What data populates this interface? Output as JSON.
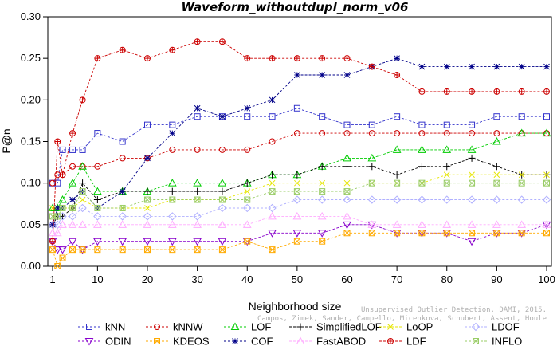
{
  "chart_data": {
    "type": "line",
    "title": "Waveform_withoutdupl_norm_v06",
    "xlabel": "Neighborhood size",
    "ylabel": "P@n",
    "xlim": [
      1,
      100
    ],
    "ylim": [
      0,
      0.3
    ],
    "x_ticks": [
      1,
      10,
      20,
      30,
      40,
      50,
      60,
      70,
      80,
      90,
      100
    ],
    "y_ticks": [
      0.0,
      0.05,
      0.1,
      0.15,
      0.2,
      0.25,
      0.3
    ],
    "y_tick_labels": [
      "0.00",
      "0.05",
      "0.10",
      "0.15",
      "0.20",
      "0.25",
      "0.30"
    ],
    "grid": false,
    "legend_position": "bottom",
    "x": [
      1,
      2,
      3,
      5,
      7,
      10,
      15,
      20,
      25,
      30,
      35,
      40,
      45,
      50,
      55,
      60,
      65,
      70,
      75,
      80,
      85,
      90,
      95,
      100
    ],
    "series": [
      {
        "name": "kNN",
        "color": "#3333cc",
        "marker": "square",
        "values": [
          0.1,
          0.1,
          0.14,
          0.14,
          0.14,
          0.16,
          0.15,
          0.17,
          0.17,
          0.18,
          0.18,
          0.18,
          0.18,
          0.19,
          0.18,
          0.17,
          0.17,
          0.18,
          0.17,
          0.17,
          0.17,
          0.18,
          0.18,
          0.18
        ]
      },
      {
        "name": "kNNW",
        "color": "#cc0000",
        "marker": "circle",
        "values": [
          0.1,
          0.11,
          0.11,
          0.12,
          0.12,
          0.12,
          0.13,
          0.13,
          0.14,
          0.14,
          0.14,
          0.14,
          0.15,
          0.16,
          0.16,
          0.16,
          0.16,
          0.16,
          0.16,
          0.16,
          0.16,
          0.16,
          0.16,
          0.16
        ]
      },
      {
        "name": "LOF",
        "color": "#00cc00",
        "marker": "triangle-up",
        "values": [
          0.07,
          0.07,
          0.08,
          0.1,
          0.12,
          0.09,
          0.09,
          0.09,
          0.1,
          0.1,
          0.1,
          0.1,
          0.11,
          0.11,
          0.12,
          0.13,
          0.13,
          0.14,
          0.14,
          0.14,
          0.14,
          0.15,
          0.16,
          0.16
        ]
      },
      {
        "name": "SimplifiedLOF",
        "color": "#000000",
        "marker": "plus",
        "values": [
          0.05,
          0.06,
          0.06,
          0.07,
          0.1,
          0.08,
          0.09,
          0.09,
          0.09,
          0.09,
          0.09,
          0.1,
          0.11,
          0.11,
          0.12,
          0.12,
          0.12,
          0.11,
          0.12,
          0.12,
          0.13,
          0.12,
          0.11,
          0.11
        ]
      },
      {
        "name": "LoOP",
        "color": "#e6e600",
        "marker": "x",
        "values": [
          0.07,
          0.07,
          0.07,
          0.07,
          0.08,
          0.07,
          0.07,
          0.07,
          0.08,
          0.08,
          0.08,
          0.09,
          0.1,
          0.1,
          0.1,
          0.1,
          0.1,
          0.1,
          0.1,
          0.11,
          0.11,
          0.11,
          0.11,
          0.11
        ]
      },
      {
        "name": "LDOF",
        "color": "#b0b0ff",
        "marker": "diamond",
        "values": [
          0.05,
          0.05,
          0.06,
          0.06,
          0.07,
          0.06,
          0.06,
          0.06,
          0.06,
          0.06,
          0.07,
          0.07,
          0.07,
          0.08,
          0.08,
          0.08,
          0.08,
          0.08,
          0.08,
          0.08,
          0.08,
          0.08,
          0.08,
          0.08
        ]
      },
      {
        "name": "ODIN",
        "color": "#8800cc",
        "marker": "triangle-down",
        "values": [
          0.03,
          0.02,
          0.02,
          0.03,
          0.02,
          0.03,
          0.03,
          0.03,
          0.03,
          0.03,
          0.03,
          0.03,
          0.04,
          0.04,
          0.04,
          0.05,
          0.05,
          0.04,
          0.04,
          0.04,
          0.03,
          0.04,
          0.04,
          0.05
        ]
      },
      {
        "name": "KDEOS",
        "color": "#ffaa00",
        "marker": "boxed-x",
        "values": [
          0.02,
          0.0,
          0.01,
          0.02,
          0.02,
          0.02,
          0.02,
          0.02,
          0.02,
          0.02,
          0.02,
          0.03,
          0.02,
          0.03,
          0.03,
          0.04,
          0.04,
          0.04,
          0.04,
          0.04,
          0.04,
          0.04,
          0.04,
          0.04
        ]
      },
      {
        "name": "COF",
        "color": "#000088",
        "marker": "star",
        "values": [
          0.05,
          0.07,
          0.07,
          0.08,
          0.09,
          0.07,
          0.09,
          0.13,
          0.16,
          0.19,
          0.18,
          0.19,
          0.2,
          0.23,
          0.23,
          0.23,
          0.24,
          0.25,
          0.24,
          0.24,
          0.24,
          0.24,
          0.24,
          0.24
        ]
      },
      {
        "name": "FastABOD",
        "color": "#ffaaff",
        "marker": "triangle-up",
        "values": [
          0.04,
          0.04,
          0.05,
          0.05,
          0.05,
          0.05,
          0.05,
          0.05,
          0.05,
          0.05,
          0.05,
          0.05,
          0.06,
          0.06,
          0.06,
          0.06,
          0.05,
          0.05,
          0.05,
          0.05,
          0.05,
          0.05,
          0.05,
          0.05
        ]
      },
      {
        "name": "LDF",
        "color": "#cc0000",
        "marker": "circle-plus",
        "values": [
          0.03,
          0.15,
          0.11,
          0.16,
          0.2,
          0.25,
          0.26,
          0.25,
          0.26,
          0.27,
          0.27,
          0.25,
          0.25,
          0.25,
          0.25,
          0.25,
          0.24,
          0.23,
          0.21,
          0.21,
          0.21,
          0.21,
          0.21,
          0.21
        ]
      },
      {
        "name": "INFLO",
        "color": "#99cc66",
        "marker": "boxed-x",
        "values": [
          0.06,
          0.06,
          0.07,
          0.07,
          0.09,
          0.07,
          0.07,
          0.08,
          0.08,
          0.08,
          0.08,
          0.08,
          0.09,
          0.09,
          0.09,
          0.09,
          0.1,
          0.1,
          0.1,
          0.1,
          0.1,
          0.1,
          0.1,
          0.1
        ]
      }
    ]
  },
  "watermark": {
    "line1": "Unsupervised Outlier Detection. DAMI, 2015.",
    "line2": "Campos, Zimek, Sander, Campello, Micenkova, Schubert, Assent, Houle"
  }
}
